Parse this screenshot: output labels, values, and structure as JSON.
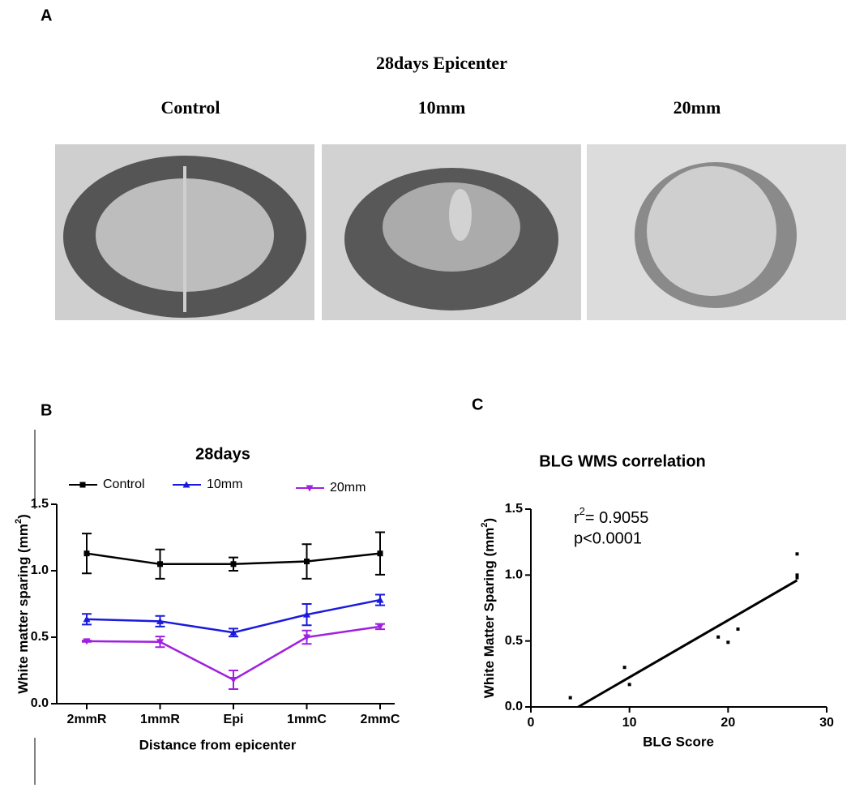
{
  "panels": {
    "a": {
      "label": "A",
      "title": "28days Epicenter",
      "images": [
        "Control",
        "10mm",
        "20mm"
      ]
    },
    "b": {
      "label": "B"
    },
    "c": {
      "label": "C"
    }
  },
  "chart_data": [
    {
      "type": "line",
      "title": "28days",
      "xlabel": "Distance from epicenter",
      "ylabel": {
        "text": "White matter sparing (mm",
        "sup": "2",
        "end": ")"
      },
      "categories": [
        "2mmR",
        "1mmR",
        "Epi",
        "1mmC",
        "2mmC"
      ],
      "ylim": [
        0,
        1.5
      ],
      "yticks": [
        {
          "value": 0,
          "label": "0.0"
        },
        0.5,
        {
          "value": 1,
          "label": "1.0"
        },
        1.5
      ],
      "legend": "top",
      "series": [
        {
          "name": "Control",
          "color": "#000000",
          "marker": "square",
          "values": [
            1.13,
            1.05,
            1.05,
            1.07,
            1.13
          ],
          "errors": [
            0.15,
            0.11,
            0.05,
            0.13,
            0.16
          ]
        },
        {
          "name": "10mm",
          "color": "#1a1adc",
          "marker": "triangle-up",
          "values": [
            0.635,
            0.62,
            0.535,
            0.67,
            0.78
          ],
          "errors": [
            0.04,
            0.04,
            0.03,
            0.08,
            0.04
          ]
        },
        {
          "name": "20mm",
          "color": "#a020e0",
          "marker": "triangle-down",
          "values": [
            0.47,
            0.465,
            0.18,
            0.5,
            0.58
          ],
          "errors": [
            0.005,
            0.04,
            0.07,
            0.05,
            0.02
          ]
        }
      ]
    },
    {
      "type": "scatter",
      "title": "BLG WMS correlation",
      "xlabel": "BLG Score",
      "ylabel": {
        "text": "White Matter Sparing (mm",
        "sup": "2",
        "end": ")"
      },
      "annotation": {
        "r": "r",
        "sup": "2",
        "rest": "= 0.9055",
        "p": "p<0.0001"
      },
      "x": [
        4,
        9.5,
        10,
        19,
        20,
        21,
        27,
        27,
        27
      ],
      "y": [
        0.07,
        0.3,
        0.17,
        0.53,
        0.49,
        0.59,
        1.16,
        1.0,
        0.98
      ],
      "color": "#000000",
      "fit": {
        "x": [
          4.8,
          27
        ],
        "y": [
          0,
          0.96
        ]
      },
      "xlim": [
        0,
        30
      ],
      "xticks": [
        0,
        10,
        20,
        30
      ],
      "ylim": [
        0,
        1.5
      ],
      "yticks": [
        {
          "value": 0,
          "label": "0.0"
        },
        0.5,
        {
          "value": 1,
          "label": "1.0"
        },
        1.5
      ]
    }
  ]
}
